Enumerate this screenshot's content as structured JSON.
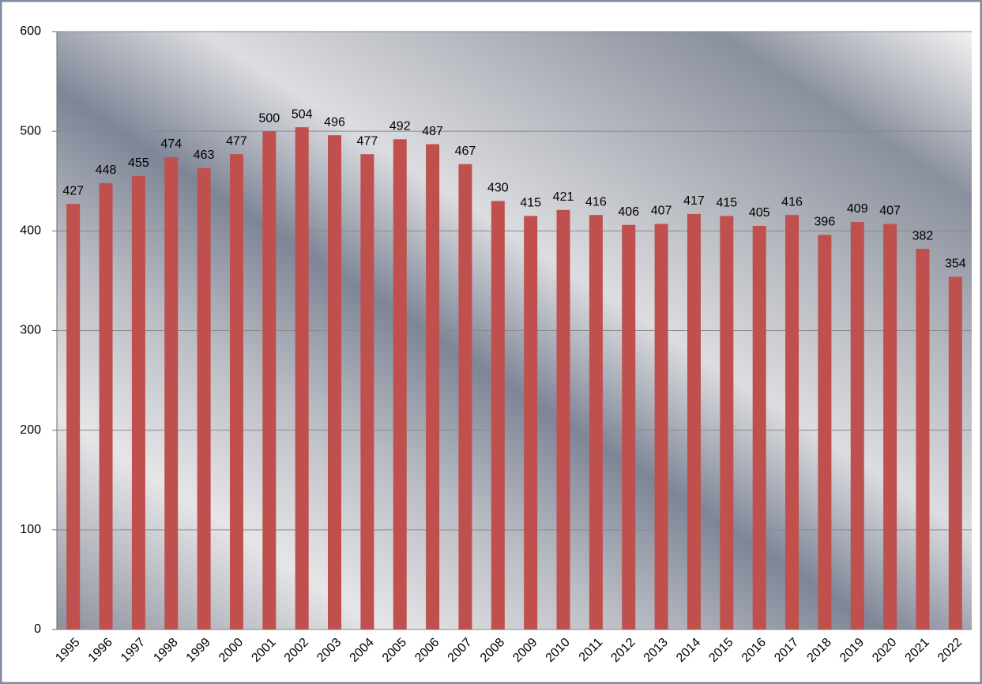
{
  "chart_data": {
    "type": "bar",
    "categories": [
      "1995",
      "1996",
      "1997",
      "1998",
      "1999",
      "2000",
      "2001",
      "2002",
      "2003",
      "2004",
      "2005",
      "2006",
      "2007",
      "2008",
      "2009",
      "2010",
      "2011",
      "2012",
      "2013",
      "2014",
      "2015",
      "2016",
      "2017",
      "2018",
      "2019",
      "2020",
      "2021",
      "2022"
    ],
    "values": [
      427,
      448,
      455,
      474,
      463,
      477,
      500,
      504,
      496,
      477,
      492,
      487,
      467,
      430,
      415,
      421,
      416,
      406,
      407,
      417,
      415,
      405,
      416,
      396,
      409,
      407,
      382,
      354
    ],
    "color": "#c0504d",
    "ylim": [
      0,
      600
    ],
    "yticks": [
      0,
      100,
      200,
      300,
      400,
      500,
      600
    ],
    "grid": true
  }
}
